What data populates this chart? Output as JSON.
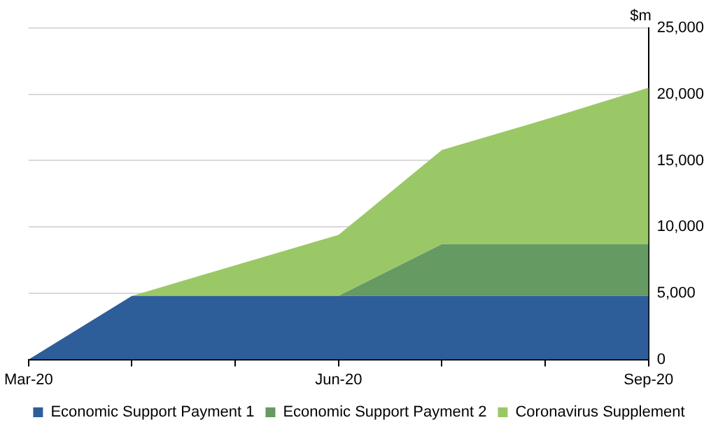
{
  "chart_data": {
    "type": "area",
    "stacked": true,
    "ylabel": "$m",
    "categories": [
      "Mar-20",
      null,
      null,
      "Jun-20",
      null,
      null,
      "Sep-20"
    ],
    "series": [
      {
        "name": "Economic Support Payment 1",
        "color": "#2e5e9a",
        "values": [
          0,
          4800,
          4800,
          4800,
          4800,
          4800,
          4800
        ]
      },
      {
        "name": "Economic Support Payment 2",
        "color": "#659a63",
        "values": [
          0,
          0,
          0,
          0,
          3900,
          3900,
          3900
        ]
      },
      {
        "name": "Coronavirus Supplement",
        "color": "#9bc866",
        "values": [
          0,
          0,
          2300,
          4600,
          7100,
          9400,
          11800
        ]
      }
    ],
    "ylim": [
      0,
      25000
    ],
    "yticks": [
      {
        "value": 0,
        "label": "0"
      },
      {
        "value": 5000,
        "label": "5,000"
      },
      {
        "value": 10000,
        "label": "10,000"
      },
      {
        "value": 15000,
        "label": "15,000"
      },
      {
        "value": 20000,
        "label": "20,000"
      },
      {
        "value": 25000,
        "label": "25,000"
      }
    ],
    "grid": "y",
    "legend": "bottom"
  }
}
